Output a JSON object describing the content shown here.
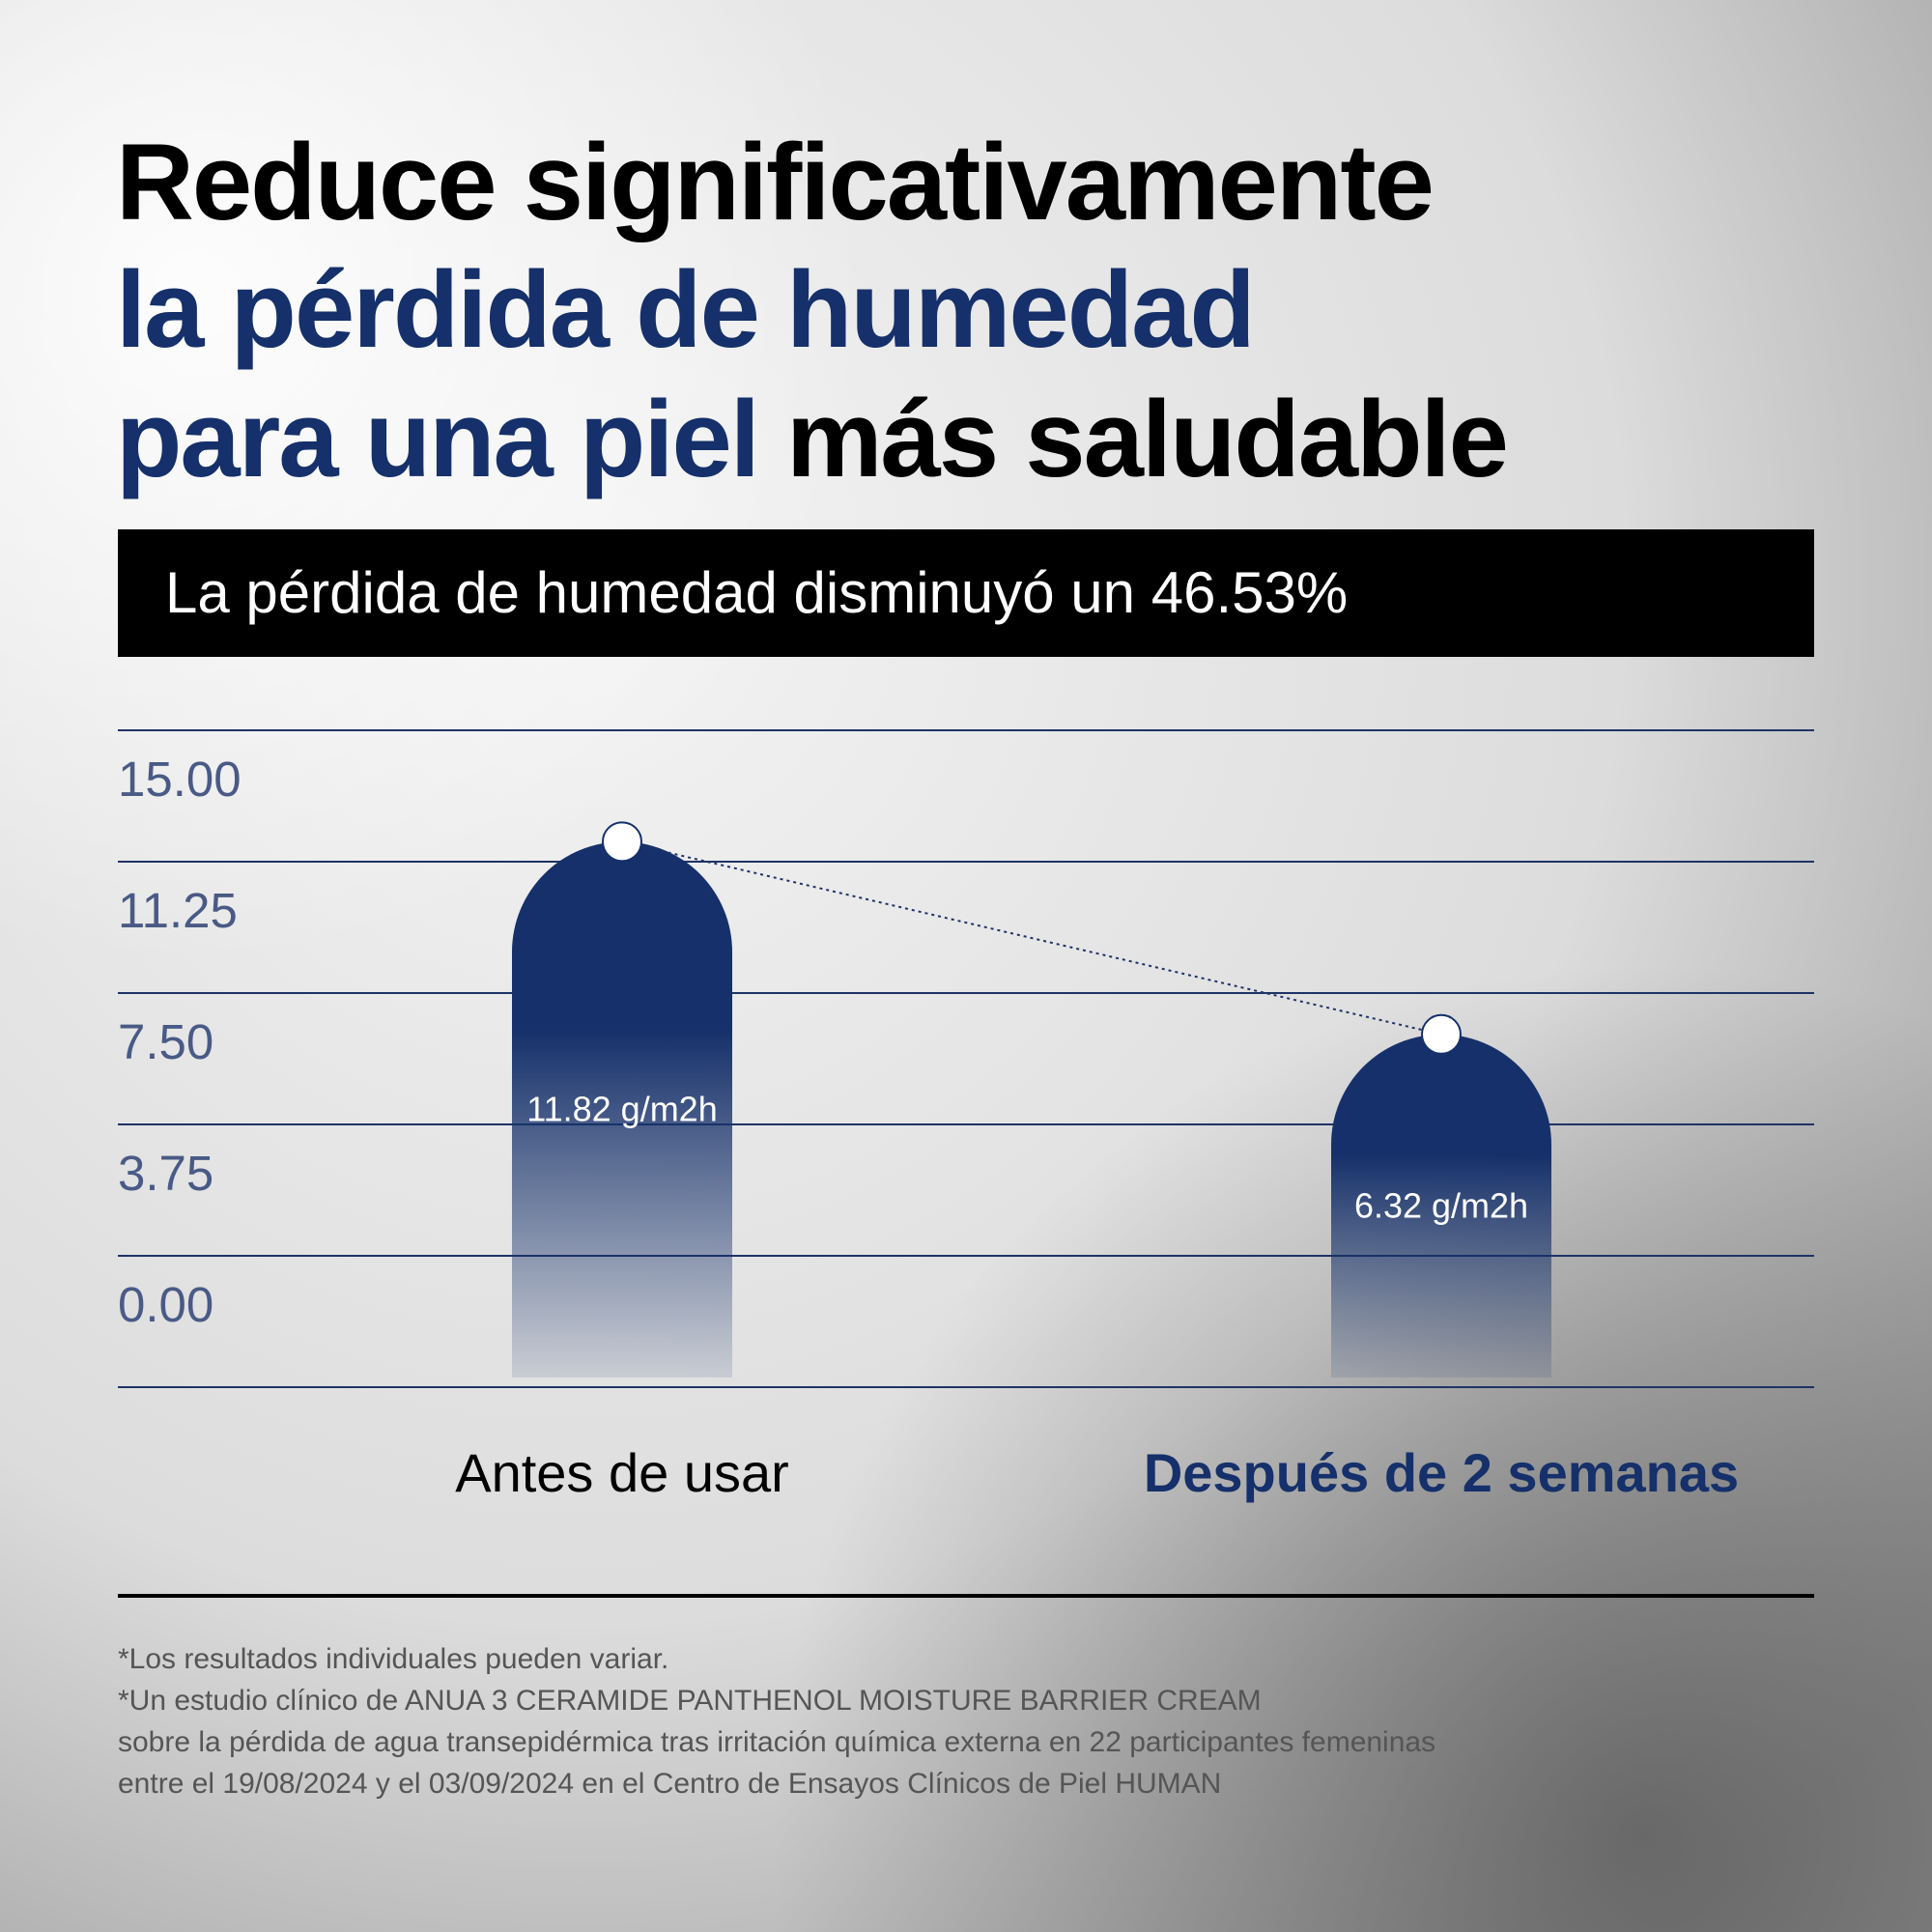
{
  "chart_data": {
    "type": "bar",
    "title_lines": [
      [
        {
          "text": "Reduce significativamente",
          "color": "#000000"
        }
      ],
      [
        {
          "text": "la pérdida de humedad",
          "color": "#15306a"
        }
      ],
      [
        {
          "text": "para una piel",
          "color": "#15306a"
        },
        {
          "text": "más saludable",
          "color": "#000000"
        }
      ]
    ],
    "subtitle": "La pérdida de humedad disminuyó un 46.53%",
    "categories": [
      "Antes de usar",
      "Después de 2 semanas"
    ],
    "category_colors": [
      "#000000",
      "#15306a"
    ],
    "values": [
      11.82,
      6.32
    ],
    "value_labels": [
      "11.82 g/m2h",
      "6.32 g/m2h"
    ],
    "color": "#15306a",
    "ylim": [
      0,
      15
    ],
    "yticks": [
      {
        "value": 15,
        "label": "15.00"
      },
      {
        "value": 11.25,
        "label": "11.25"
      },
      {
        "value": 7.5,
        "label": "7.50"
      },
      {
        "value": 3.75,
        "label": "3.75"
      },
      {
        "value": 0,
        "label": "0.00"
      }
    ],
    "grid": true,
    "footnotes": [
      "*Los resultados individuales pueden variar.",
      "*Un estudio clínico de ANUA 3 CERAMIDE PANTHENOL MOISTURE BARRIER CREAM",
      "sobre la pérdida de agua transepidérmica tras irritación química externa en 22 participantes femeninas",
      "entre el 19/08/2024 y el 03/09/2024 en el Centro de Ensayos Clínicos de Piel HUMAN"
    ]
  }
}
